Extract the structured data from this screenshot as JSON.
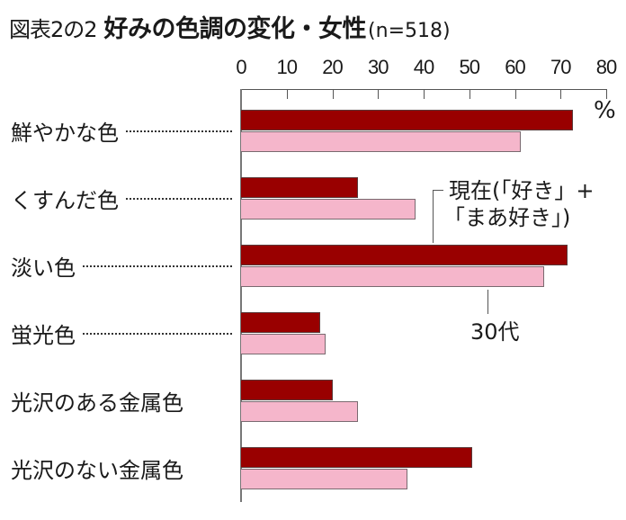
{
  "title": {
    "figure_label": "図表2の2",
    "main": "好みの色調の変化・女性",
    "sample": "(n=518)"
  },
  "axis": {
    "ticks": [
      "0",
      "10",
      "20",
      "30",
      "40",
      "50",
      "60",
      "70",
      "80"
    ],
    "unit": "%"
  },
  "annotations": {
    "current": "現在(「好き」+「まあ好き」)",
    "current_line1": "現在(「好き」+",
    "current_line2": "「まあ好き」)",
    "age30": "30代"
  },
  "colors": {
    "current": "#990000",
    "age30": "#f5b6cb"
  },
  "categories": [
    {
      "label": "鮮やかな色",
      "leader": true
    },
    {
      "label": "くすんだ色",
      "leader": true
    },
    {
      "label": "淡い色",
      "leader": true
    },
    {
      "label": "蛍光色",
      "leader": true
    },
    {
      "label": "光沢のある金属色",
      "leader": false
    },
    {
      "label": "光沢のない金属色",
      "leader": false
    }
  ],
  "chart_data": {
    "type": "bar",
    "orientation": "horizontal",
    "title": "図表2の2 好みの色調の変化・女性 (n=518)",
    "xlabel": "%",
    "ylabel": "",
    "xlim": [
      0,
      80
    ],
    "xticks": [
      0,
      10,
      20,
      30,
      40,
      50,
      60,
      70,
      80
    ],
    "grid": false,
    "categories": [
      "鮮やかな色",
      "くすんだ色",
      "淡い色",
      "蛍光色",
      "光沢のある金属色",
      "光沢のない金属色"
    ],
    "series": [
      {
        "name": "現在(「好き」+「まあ好き」)",
        "color": "#990000",
        "values": [
          72.7,
          25.6,
          71.5,
          17.3,
          20.1,
          50.6
        ]
      },
      {
        "name": "30代",
        "color": "#f5b6cb",
        "values": [
          61.3,
          38.2,
          66.4,
          18.5,
          25.6,
          36.5
        ]
      }
    ],
    "annotations": [
      "現在(「好き」+「まあ好き」)",
      "30代"
    ]
  }
}
